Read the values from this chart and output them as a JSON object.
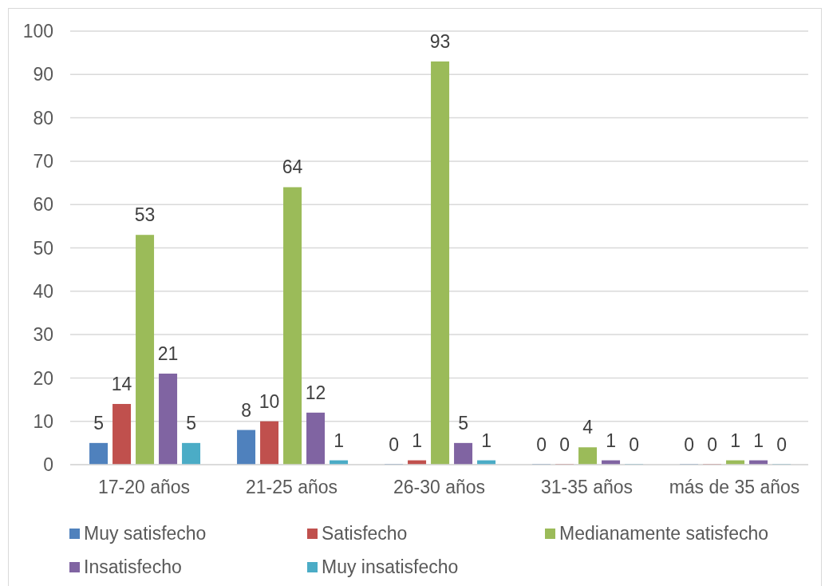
{
  "chart_data": {
    "type": "bar",
    "categories": [
      "17-20 años",
      "21-25 años",
      "26-30 años",
      "31-35 años",
      "más de 35 años"
    ],
    "series": [
      {
        "name": "Muy satisfecho",
        "color": "#4f81bd",
        "values": [
          5,
          8,
          0,
          0,
          0
        ]
      },
      {
        "name": "Satisfecho",
        "color": "#c0504d",
        "values": [
          14,
          10,
          1,
          0,
          0
        ]
      },
      {
        "name": "Medianamente satisfecho",
        "color": "#9bbb59",
        "values": [
          53,
          64,
          93,
          4,
          1
        ]
      },
      {
        "name": "Insatisfecho",
        "color": "#8064a2",
        "values": [
          21,
          12,
          5,
          1,
          1
        ]
      },
      {
        "name": "Muy insatisfecho",
        "color": "#4bacc6",
        "values": [
          5,
          1,
          1,
          0,
          0
        ]
      }
    ],
    "ylim": [
      0,
      100
    ],
    "yticks": [
      0,
      10,
      20,
      30,
      40,
      50,
      60,
      70,
      80,
      90,
      100
    ],
    "grid": "y",
    "legend": "bottom",
    "data_labels": true
  }
}
